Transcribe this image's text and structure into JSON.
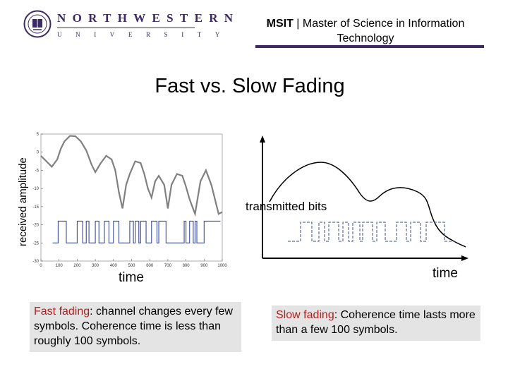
{
  "header": {
    "logo": {
      "wordmark": "NORTHWESTERN",
      "sub": "UNIVERSITY"
    },
    "program_bold": "MSIT",
    "separator": " | ",
    "program_full": "Master of Science in Information Technology"
  },
  "title": "Fast vs. Slow Fading",
  "left_plot": {
    "ylabel": "received amplitude",
    "xlabel": "time",
    "yticks": [
      "5",
      "0",
      "-5",
      "-10",
      "-15",
      "-20",
      "-25",
      "-30"
    ],
    "xticks": [
      "0",
      "100",
      "200",
      "300",
      "400",
      "500",
      "600",
      "700",
      "800",
      "900",
      "1000"
    ]
  },
  "right_plot": {
    "label": "transmitted bits",
    "xlabel": "time"
  },
  "boxes": {
    "fast": {
      "term": "Fast fading",
      "rest": ": channel changes every few symbols. Coherence time is less than roughly 100 symbols."
    },
    "slow": {
      "term": "Slow fading",
      "rest": ": Coherence time lasts more than a few 100 symbols."
    }
  },
  "colors": {
    "brand_purple": "#3b2a63",
    "accent_red": "#b02020",
    "box_gray": "#e4e4e4",
    "bits_blue": "#3a4a9a"
  },
  "chart_data": {
    "type": "line",
    "xlim": [
      0,
      1000
    ],
    "ylim": [
      -30,
      5
    ],
    "x": [
      0,
      30,
      60,
      90,
      110,
      130,
      160,
      190,
      220,
      250,
      280,
      300,
      330,
      360,
      390,
      410,
      430,
      450,
      470,
      490,
      520,
      550,
      570,
      590,
      610,
      630,
      650,
      680,
      700,
      720,
      750,
      780,
      800,
      820,
      850,
      880,
      910,
      940,
      960,
      980,
      1000
    ],
    "values": [
      -1,
      -2.5,
      -4,
      -2,
      1,
      3,
      4.5,
      4.4,
      3,
      0.5,
      -3.5,
      -5.5,
      -3,
      -1,
      -2,
      -5,
      -11,
      -15.5,
      -9,
      -6,
      -2.5,
      -3,
      -6,
      -10,
      -12.5,
      -8,
      -6.5,
      -9,
      -15.5,
      -9,
      -6,
      -6.5,
      -9.5,
      -13,
      -17,
      -8,
      -5,
      -9,
      -13,
      -17,
      -16.5
    ]
  }
}
